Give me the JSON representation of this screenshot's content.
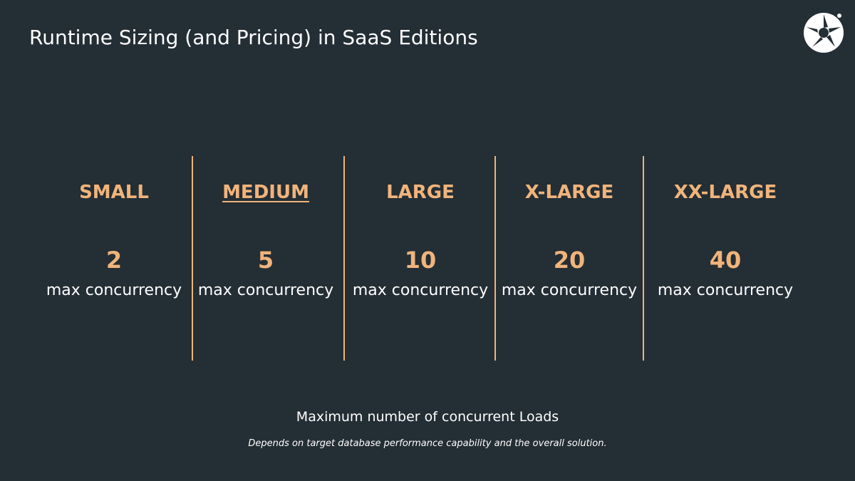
{
  "slide": {
    "title": "Runtime Sizing (and Pricing) in SaaS Editions",
    "logo_icon": "aperture-logo-icon",
    "accent_color": "#f0b47b",
    "background_color": "#242e35"
  },
  "tiers": [
    {
      "name": "SMALL",
      "value": "2",
      "unit": "max concurrency",
      "underlined": false
    },
    {
      "name": "MEDIUM",
      "value": "5",
      "unit": "max concurrency",
      "underlined": true
    },
    {
      "name": "LARGE",
      "value": "10",
      "unit": "max concurrency",
      "underlined": false
    },
    {
      "name": "X-LARGE",
      "value": "20",
      "unit": "max concurrency",
      "underlined": false
    },
    {
      "name": "XX-LARGE",
      "value": "40",
      "unit": "max concurrency",
      "underlined": false
    }
  ],
  "footer": {
    "main": "Maximum number of concurrent Loads",
    "sub": "Depends on target database performance capability and the overall solution."
  }
}
